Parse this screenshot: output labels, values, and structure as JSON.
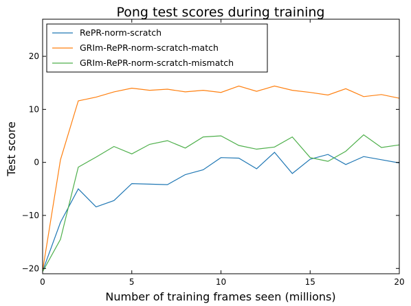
{
  "chart_data": {
    "type": "line",
    "title": "Pong test scores during training",
    "xlabel": "Number of training frames seen (millions)",
    "ylabel": "Test score",
    "xlim": [
      0,
      20
    ],
    "ylim": [
      -21,
      27
    ],
    "xticks": [
      0,
      5,
      10,
      15,
      20
    ],
    "yticks": [
      -20,
      -10,
      0,
      10,
      20
    ],
    "grid": false,
    "legend_position": "top-left",
    "x": [
      0,
      1,
      2,
      3,
      4,
      5,
      6,
      7,
      8,
      9,
      10,
      11,
      12,
      13,
      14,
      15,
      16,
      17,
      18,
      19,
      20
    ],
    "series": [
      {
        "name": "RePR-norm-scratch",
        "color": "#1f77b4",
        "values": [
          -20.5,
          -11.3,
          -5.0,
          -8.4,
          -7.2,
          -4.0,
          -4.1,
          -4.2,
          -2.3,
          -1.4,
          0.9,
          0.8,
          -1.2,
          1.9,
          -2.1,
          0.6,
          1.5,
          -0.4,
          1.1,
          0.5,
          -0.1
        ]
      },
      {
        "name": "GRIm-RePR-norm-scratch-match",
        "color": "#ff7f0e",
        "values": [
          -20.4,
          0.5,
          11.6,
          12.3,
          13.3,
          14.0,
          13.6,
          13.8,
          13.3,
          13.6,
          13.2,
          14.4,
          13.4,
          14.4,
          13.6,
          13.2,
          12.7,
          13.9,
          12.4,
          12.8,
          12.1
        ]
      },
      {
        "name": "GRIm-RePR-norm-scratch-mismatch",
        "color": "#4daf4a",
        "values": [
          -20.6,
          -14.5,
          -0.9,
          1.0,
          3.0,
          1.6,
          3.4,
          4.1,
          2.7,
          4.8,
          5.0,
          3.2,
          2.5,
          2.9,
          4.8,
          0.9,
          0.2,
          2.1,
          5.2,
          2.8,
          3.3
        ]
      }
    ]
  }
}
